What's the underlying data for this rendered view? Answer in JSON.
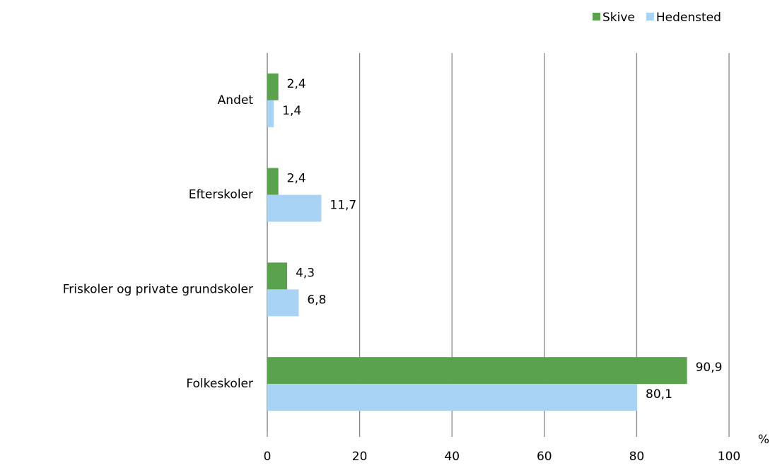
{
  "chart_data": {
    "type": "hbar",
    "categories": [
      "Andet",
      "Efterskoler",
      "Friskoler og private grundskoler",
      "Folkeskoler"
    ],
    "series": [
      {
        "name": "Skive",
        "color": "#5ba24f",
        "values": [
          2.4,
          2.4,
          4.3,
          90.9
        ],
        "value_labels": [
          "2,4",
          "2,4",
          "4,3",
          "90,9"
        ]
      },
      {
        "name": "Hedensted",
        "color": "#a9d3f5",
        "values": [
          1.4,
          11.7,
          6.8,
          80.1
        ],
        "value_labels": [
          "1,4",
          "11,7",
          "6,8",
          "80,1"
        ]
      }
    ],
    "x_label": "%",
    "xlim": [
      0,
      100
    ],
    "xticks": [
      0,
      20,
      40,
      60,
      80,
      100
    ],
    "grid": true,
    "legend": "top-right"
  }
}
